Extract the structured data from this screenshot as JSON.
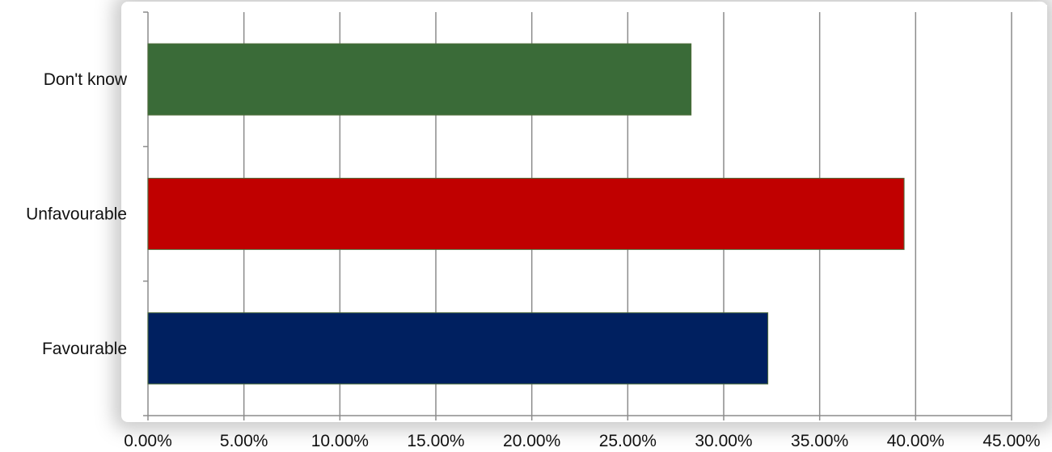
{
  "chart_data": {
    "type": "bar",
    "orientation": "horizontal",
    "categories": [
      "Favourable",
      "Unfavourable",
      "Don't know"
    ],
    "values": [
      32.3,
      39.4,
      28.3
    ],
    "colors": [
      "#002060",
      "#C00000",
      "#3A6B38"
    ],
    "value_format": "percent",
    "xlim": [
      0,
      45
    ],
    "x_ticks": [
      0,
      5,
      10,
      15,
      20,
      25,
      30,
      35,
      40,
      45
    ],
    "x_tick_labels": [
      "0.00%",
      "5.00%",
      "10.00%",
      "15.00%",
      "20.00%",
      "25.00%",
      "30.00%",
      "35.00%",
      "40.00%",
      "45.00%"
    ],
    "grid": true,
    "legend": "none",
    "title": "",
    "xlabel": "",
    "ylabel": ""
  }
}
